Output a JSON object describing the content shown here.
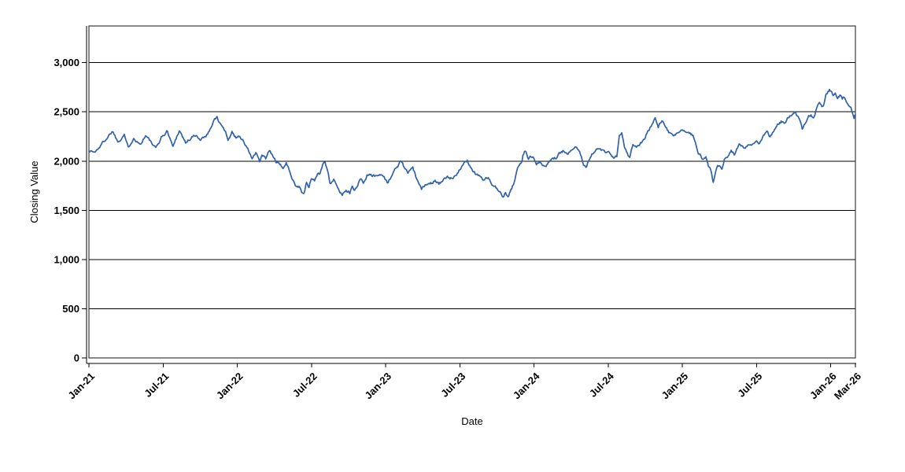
{
  "chart_data": {
    "type": "line",
    "title": "",
    "xlabel": "Date",
    "ylabel": "Closing Value",
    "x_tick_labels": [
      "Jan-21",
      "Jul-21",
      "Jan-22",
      "Jul-22",
      "Jan-23",
      "Jul-23",
      "Jan-24",
      "Jul-24",
      "Jan-25",
      "Jul-25",
      "Jan-26",
      "Mar-26"
    ],
    "x_tick_months": [
      0,
      6,
      12,
      18,
      24,
      30,
      36,
      42,
      48,
      54,
      60,
      62
    ],
    "y_tick_values": [
      0,
      500,
      1000,
      1500,
      2000,
      2500,
      3000
    ],
    "y_tick_labels": [
      "0",
      "500",
      "1,000",
      "1,500",
      "2,000",
      "2,500",
      "3,000"
    ],
    "xlim_months": [
      0,
      62
    ],
    "ylim": [
      0,
      3373
    ],
    "grid": {
      "horizontal": true,
      "vertical": false,
      "color": "#000000"
    },
    "legend": "none",
    "line_color": "#2F62AC",
    "series": [
      {
        "name": "Closing Value",
        "points": [
          [
            0,
            2110
          ],
          [
            0.5,
            2090
          ],
          [
            0.95,
            2160
          ],
          [
            1.46,
            2240
          ],
          [
            1.91,
            2310
          ],
          [
            2.35,
            2200
          ],
          [
            2.86,
            2280
          ],
          [
            3.18,
            2130
          ],
          [
            3.62,
            2250
          ],
          [
            4.13,
            2170
          ],
          [
            4.58,
            2265
          ],
          [
            4.96,
            2200
          ],
          [
            5.4,
            2120
          ],
          [
            5.85,
            2240
          ],
          [
            6.36,
            2305
          ],
          [
            6.8,
            2145
          ],
          [
            7.31,
            2320
          ],
          [
            7.82,
            2185
          ],
          [
            8.08,
            2215
          ],
          [
            8.52,
            2255
          ],
          [
            9.03,
            2225
          ],
          [
            9.47,
            2265
          ],
          [
            9.79,
            2320
          ],
          [
            10.11,
            2425
          ],
          [
            10.36,
            2440
          ],
          [
            10.68,
            2360
          ],
          [
            10.94,
            2320
          ],
          [
            11.25,
            2225
          ],
          [
            11.57,
            2295
          ],
          [
            11.89,
            2240
          ],
          [
            12.2,
            2265
          ],
          [
            12.5,
            2200
          ],
          [
            12.85,
            2120
          ],
          [
            13.2,
            2025
          ],
          [
            13.5,
            2080
          ],
          [
            13.8,
            1985
          ],
          [
            14.0,
            2055
          ],
          [
            14.3,
            2025
          ],
          [
            14.6,
            2105
          ],
          [
            14.9,
            2040
          ],
          [
            15.2,
            1985
          ],
          [
            15.5,
            1945
          ],
          [
            15.7,
            1935
          ],
          [
            15.96,
            1975
          ],
          [
            16.2,
            1905
          ],
          [
            16.5,
            1825
          ],
          [
            16.7,
            1760
          ],
          [
            17.0,
            1745
          ],
          [
            17.2,
            1695
          ],
          [
            17.4,
            1665
          ],
          [
            17.6,
            1775
          ],
          [
            17.8,
            1735
          ],
          [
            18.0,
            1825
          ],
          [
            18.25,
            1800
          ],
          [
            18.5,
            1880
          ],
          [
            18.7,
            1865
          ],
          [
            18.9,
            1960
          ],
          [
            19.1,
            1995
          ],
          [
            19.3,
            1920
          ],
          [
            19.5,
            1785
          ],
          [
            19.8,
            1815
          ],
          [
            20.0,
            1745
          ],
          [
            20.5,
            1655
          ],
          [
            20.8,
            1720
          ],
          [
            21.1,
            1680
          ],
          [
            21.3,
            1735
          ],
          [
            21.5,
            1695
          ],
          [
            21.8,
            1785
          ],
          [
            22.0,
            1825
          ],
          [
            22.2,
            1775
          ],
          [
            22.5,
            1855
          ],
          [
            22.8,
            1880
          ],
          [
            23.1,
            1845
          ],
          [
            23.4,
            1870
          ],
          [
            23.7,
            1865
          ],
          [
            24.0,
            1815
          ],
          [
            24.2,
            1775
          ],
          [
            24.5,
            1855
          ],
          [
            24.8,
            1920
          ],
          [
            25.1,
            1975
          ],
          [
            25.25,
            2000
          ],
          [
            25.5,
            1935
          ],
          [
            25.8,
            1880
          ],
          [
            26.0,
            1905
          ],
          [
            26.2,
            1920
          ],
          [
            26.5,
            1825
          ],
          [
            26.7,
            1745
          ],
          [
            26.9,
            1705
          ],
          [
            27.2,
            1760
          ],
          [
            27.4,
            1785
          ],
          [
            27.7,
            1785
          ],
          [
            28.0,
            1815
          ],
          [
            28.3,
            1775
          ],
          [
            28.6,
            1800
          ],
          [
            29.0,
            1825
          ],
          [
            29.4,
            1820
          ],
          [
            29.8,
            1890
          ],
          [
            30.2,
            1945
          ],
          [
            30.6,
            2000
          ],
          [
            31.0,
            1920
          ],
          [
            31.3,
            1865
          ],
          [
            31.6,
            1855
          ],
          [
            32.0,
            1800
          ],
          [
            32.3,
            1840
          ],
          [
            32.6,
            1760
          ],
          [
            33.0,
            1720
          ],
          [
            33.3,
            1665
          ],
          [
            33.5,
            1620
          ],
          [
            33.7,
            1680
          ],
          [
            33.9,
            1640
          ],
          [
            34.2,
            1720
          ],
          [
            34.4,
            1785
          ],
          [
            34.6,
            1880
          ],
          [
            34.8,
            1960
          ],
          [
            35.0,
            1985
          ],
          [
            35.1,
            2050
          ],
          [
            35.3,
            2105
          ],
          [
            35.55,
            2025
          ],
          [
            35.9,
            2050
          ],
          [
            36.2,
            1985
          ],
          [
            36.5,
            2010
          ],
          [
            36.8,
            1945
          ],
          [
            37.1,
            1970
          ],
          [
            37.45,
            2025
          ],
          [
            37.8,
            2035
          ],
          [
            38.1,
            2075
          ],
          [
            38.4,
            2105
          ],
          [
            38.7,
            2050
          ],
          [
            39.0,
            2130
          ],
          [
            39.4,
            2155
          ],
          [
            39.7,
            2090
          ],
          [
            40.0,
            1985
          ],
          [
            40.2,
            1955
          ],
          [
            40.5,
            2025
          ],
          [
            40.8,
            2090
          ],
          [
            41.1,
            2115
          ],
          [
            41.5,
            2105
          ],
          [
            41.8,
            2075
          ],
          [
            42.1,
            2070
          ],
          [
            42.4,
            2025
          ],
          [
            42.7,
            2035
          ],
          [
            42.9,
            2250
          ],
          [
            43.1,
            2275
          ],
          [
            43.3,
            2155
          ],
          [
            43.55,
            2090
          ],
          [
            43.75,
            2035
          ],
          [
            44.0,
            2175
          ],
          [
            44.35,
            2155
          ],
          [
            44.75,
            2205
          ],
          [
            45.0,
            2240
          ],
          [
            45.2,
            2305
          ],
          [
            45.5,
            2360
          ],
          [
            45.8,
            2435
          ],
          [
            46.05,
            2330
          ],
          [
            46.35,
            2410
          ],
          [
            46.6,
            2345
          ],
          [
            46.9,
            2290
          ],
          [
            47.2,
            2240
          ],
          [
            47.5,
            2270
          ],
          [
            47.9,
            2320
          ],
          [
            48.2,
            2280
          ],
          [
            48.5,
            2295
          ],
          [
            48.8,
            2270
          ],
          [
            49.0,
            2225
          ],
          [
            49.3,
            2095
          ],
          [
            49.65,
            2015
          ],
          [
            49.9,
            2055
          ],
          [
            50.1,
            1960
          ],
          [
            50.3,
            1920
          ],
          [
            50.5,
            1775
          ],
          [
            50.7,
            1895
          ],
          [
            50.85,
            1960
          ],
          [
            51.2,
            1920
          ],
          [
            51.4,
            2015
          ],
          [
            51.7,
            2040
          ],
          [
            51.95,
            2095
          ],
          [
            52.2,
            2065
          ],
          [
            52.6,
            2160
          ],
          [
            52.95,
            2135
          ],
          [
            53.3,
            2175
          ],
          [
            53.6,
            2160
          ],
          [
            54.0,
            2200
          ],
          [
            54.25,
            2175
          ],
          [
            54.5,
            2255
          ],
          [
            54.9,
            2295
          ],
          [
            55.1,
            2240
          ],
          [
            55.4,
            2295
          ],
          [
            55.7,
            2360
          ],
          [
            56.0,
            2400
          ],
          [
            56.3,
            2375
          ],
          [
            56.5,
            2440
          ],
          [
            56.7,
            2465
          ],
          [
            57.0,
            2495
          ],
          [
            57.1,
            2520
          ],
          [
            57.3,
            2455
          ],
          [
            57.5,
            2415
          ],
          [
            57.7,
            2320
          ],
          [
            57.9,
            2375
          ],
          [
            58.1,
            2440
          ],
          [
            58.4,
            2480
          ],
          [
            58.6,
            2440
          ],
          [
            58.9,
            2545
          ],
          [
            59.1,
            2585
          ],
          [
            59.4,
            2545
          ],
          [
            59.6,
            2655
          ],
          [
            59.9,
            2720
          ],
          [
            60.2,
            2665
          ],
          [
            60.37,
            2705
          ],
          [
            60.56,
            2655
          ],
          [
            60.75,
            2680
          ],
          [
            60.94,
            2640
          ],
          [
            61.13,
            2655
          ],
          [
            61.32,
            2615
          ],
          [
            61.51,
            2575
          ],
          [
            61.7,
            2520
          ],
          [
            61.83,
            2480
          ],
          [
            61.89,
            2455
          ],
          [
            61.95,
            2495
          ],
          [
            62,
            2465
          ]
        ]
      }
    ]
  }
}
